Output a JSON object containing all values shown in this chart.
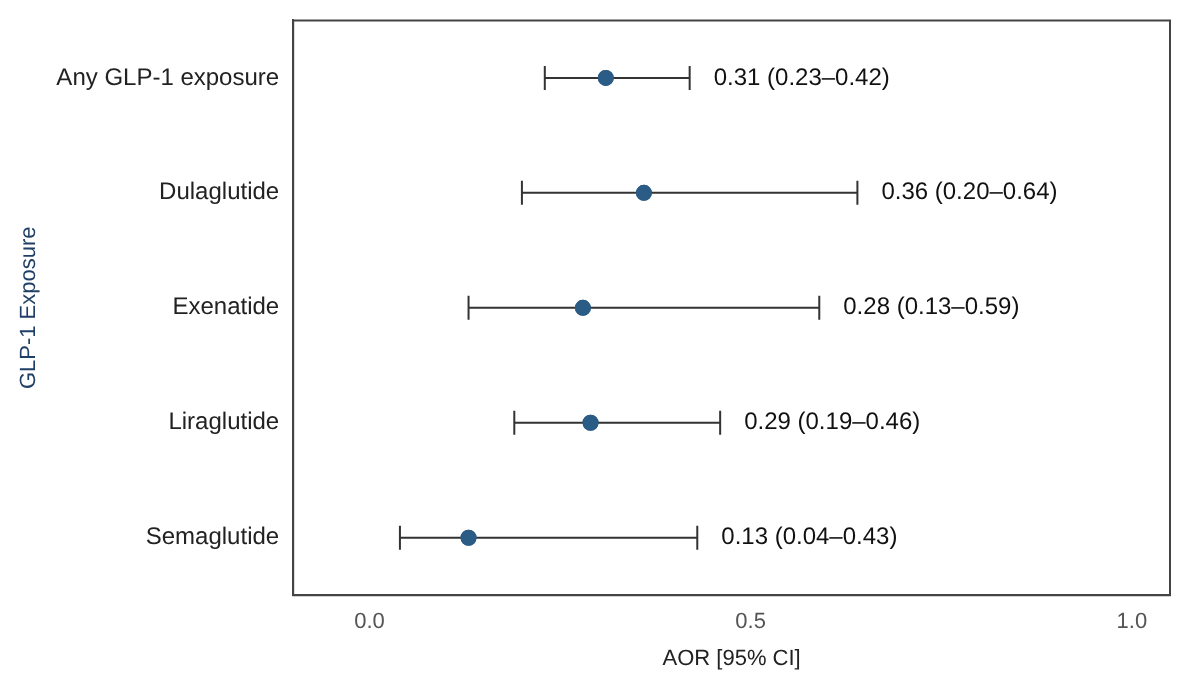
{
  "chart_data": {
    "type": "scatter",
    "orientation": "horizontal",
    "xlabel": "AOR [95% CI]",
    "ylabel": "GLP-1 Exposure",
    "categories": [
      "Any GLP-1 exposure",
      "Dulaglutide",
      "Exenatide",
      "Liraglutide",
      "Semaglutide"
    ],
    "values": [
      0.31,
      0.36,
      0.28,
      0.29,
      0.13
    ],
    "errors": [
      [
        0.23,
        0.42
      ],
      [
        0.2,
        0.64
      ],
      [
        0.13,
        0.59
      ],
      [
        0.19,
        0.46
      ],
      [
        0.04,
        0.43
      ]
    ],
    "annotations": [
      {
        "text": "0.31 (0.23–0.42)",
        "x": 0.42,
        "y": "Any GLP-1 exposure"
      },
      {
        "text": "0.36 (0.20–0.64)",
        "x": 0.64,
        "y": "Dulaglutide"
      },
      {
        "text": "0.28 (0.13–0.59)",
        "x": 0.59,
        "y": "Exenatide"
      },
      {
        "text": "0.29 (0.19–0.46)",
        "x": 0.46,
        "y": "Liraglutide"
      },
      {
        "text": "0.13 (0.04–0.43)",
        "x": 0.43,
        "y": "Semaglutide"
      }
    ],
    "color": "#2b5c86",
    "xlim": [
      -0.1,
      1.05
    ],
    "xticks": [
      {
        "value": 0,
        "label": "0.0"
      },
      {
        "value": 0.5,
        "label": "0.5"
      },
      {
        "value": 1,
        "label": "1.0"
      }
    ],
    "grid": false,
    "legend": false,
    "marker": "circle"
  }
}
